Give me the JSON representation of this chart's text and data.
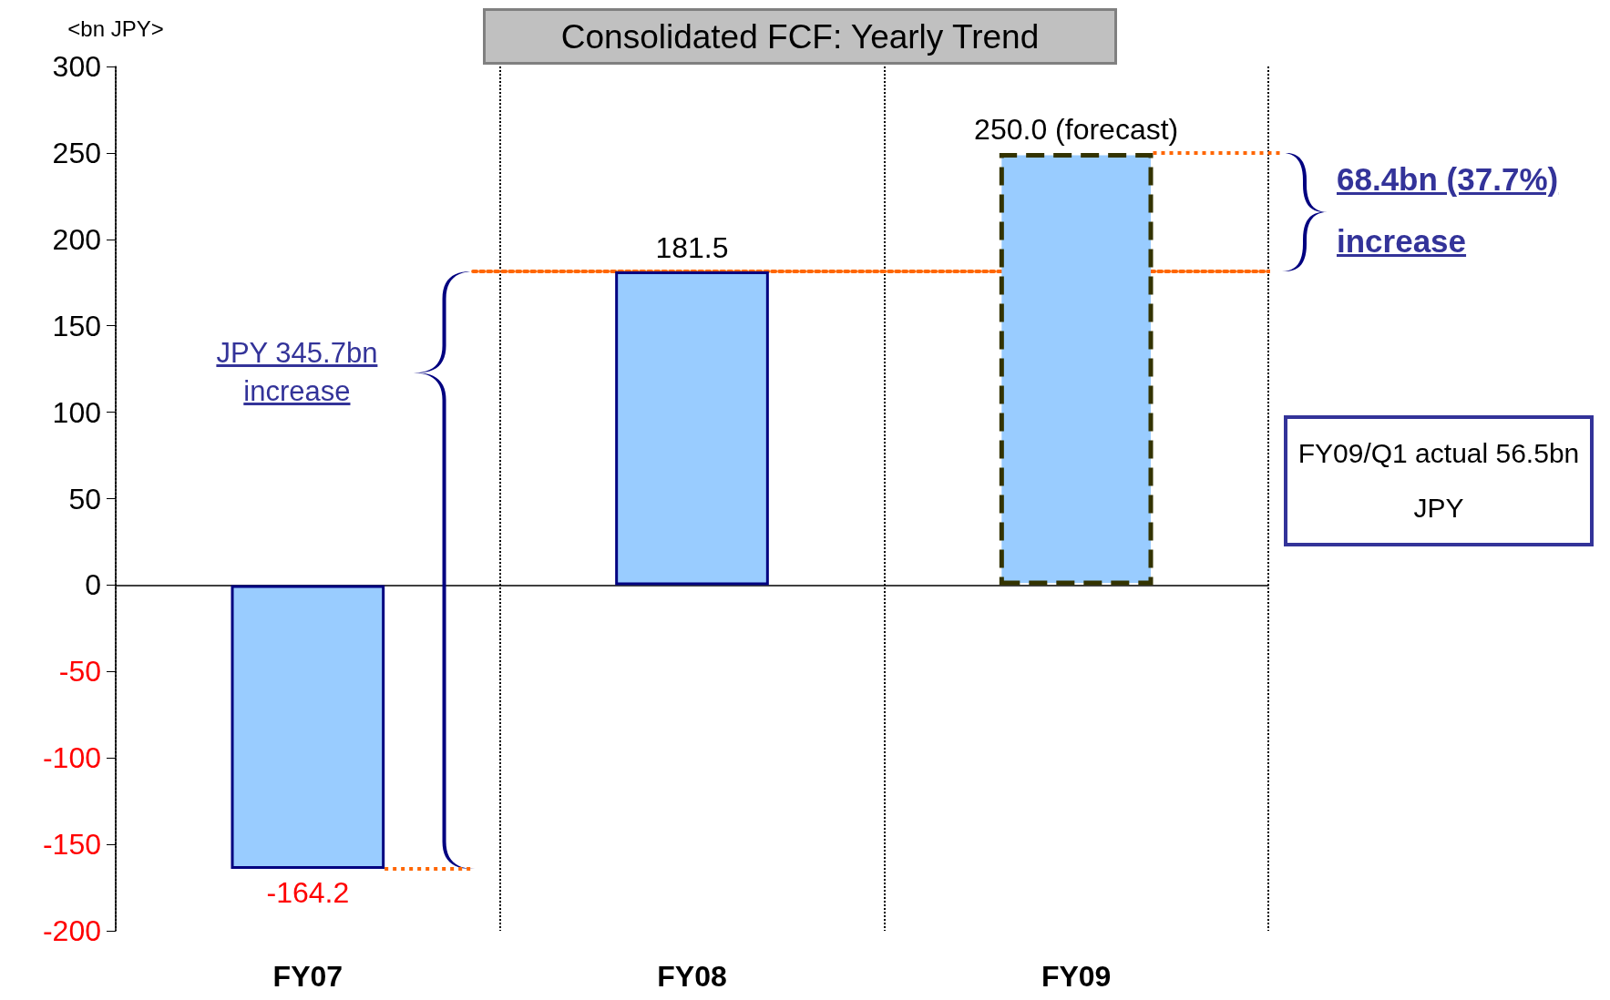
{
  "chart_data": {
    "type": "bar",
    "title": "Consolidated FCF: Yearly Trend",
    "ylabel": "<bn JPY>",
    "categories": [
      "FY07",
      "FY08",
      "FY09"
    ],
    "series": [
      {
        "color": "#99ccff",
        "line_style": "solid",
        "values": [
          -164.2,
          181.5,
          null
        ],
        "value_labels": [
          "-164.2",
          "181.5",
          null
        ]
      },
      {
        "color": "#99ccff",
        "line_style": "dashed",
        "values": [
          null,
          null,
          250.0
        ],
        "value_labels": [
          null,
          null,
          "250.0 (forecast)"
        ]
      }
    ],
    "ref_lines": [
      {
        "axis": "y",
        "value": 181.5,
        "color": "#ff6600",
        "line_style": "dotted"
      }
    ],
    "ylim": [
      -200,
      300
    ],
    "yticks": [
      -200,
      -150,
      -100,
      -50,
      0,
      50,
      100,
      150,
      200,
      250,
      300
    ],
    "grid": "x",
    "annotations": [
      "JPY 345.7bn increase",
      "68.4bn (37.7%) increase",
      "FY09/Q1 actual 56.5bn JPY"
    ]
  }
}
